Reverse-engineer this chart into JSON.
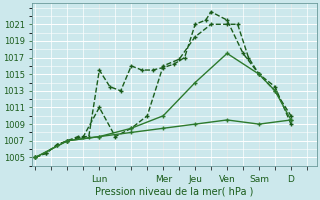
{
  "xlabel": "Pression niveau de la mer( hPa )",
  "bg_color": "#cce8ec",
  "grid_color": "#ffffff",
  "line_color_dark": "#1a5c1a",
  "line_color_light": "#2d7a2d",
  "ylim": [
    1004.0,
    1023.5
  ],
  "yticks": [
    1005,
    1007,
    1009,
    1011,
    1013,
    1015,
    1017,
    1019,
    1021
  ],
  "day_labels": [
    "Lun",
    "Mer",
    "Jeu",
    "Ven",
    "Sam",
    "D"
  ],
  "day_x": [
    2,
    4,
    5,
    6,
    7,
    8
  ],
  "xlim": [
    -0.1,
    8.8
  ],
  "series": [
    {
      "x": [
        0,
        0.33,
        0.67,
        1,
        1.33,
        1.67,
        2,
        2.33,
        2.67,
        3,
        3.33,
        3.67,
        4,
        4.33,
        4.67,
        5,
        5.33,
        5.5,
        6,
        6.5,
        7,
        7.5,
        8
      ],
      "y": [
        1005,
        1005.5,
        1006.5,
        1007,
        1007.5,
        1007.5,
        1015.5,
        1013.5,
        1013,
        1016,
        1015.5,
        1015.5,
        1015.8,
        1016.2,
        1017,
        1021,
        1021.5,
        1022.5,
        1021.5,
        1017.5,
        1015,
        1013.5,
        1009
      ],
      "color": "#1a5c1a",
      "lw": 1.0
    },
    {
      "x": [
        0,
        0.33,
        0.67,
        1,
        1.5,
        2,
        2.5,
        3,
        3.5,
        4,
        4.5,
        5,
        5.5,
        6,
        6.33,
        6.67,
        7,
        7.5,
        8
      ],
      "y": [
        1005,
        1005.5,
        1006.5,
        1007,
        1007.5,
        1011,
        1007.5,
        1008.5,
        1010,
        1016,
        1016.8,
        1019.5,
        1021,
        1021,
        1021,
        1017,
        1015,
        1013,
        1010
      ],
      "color": "#1a5c1a",
      "lw": 1.0
    },
    {
      "x": [
        0,
        1,
        2,
        3,
        4,
        5,
        6,
        7,
        7.5,
        8
      ],
      "y": [
        1005,
        1007,
        1007.5,
        1008.5,
        1010,
        1014,
        1017.5,
        1015,
        1013,
        1009.5
      ],
      "color": "#2d7a2d",
      "lw": 1.0
    },
    {
      "x": [
        0,
        1,
        2,
        3,
        4,
        5,
        6,
        7,
        8
      ],
      "y": [
        1005,
        1007,
        1007.5,
        1008,
        1008.5,
        1009,
        1009.5,
        1009,
        1009.5
      ],
      "color": "#2d7a2d",
      "lw": 1.0
    }
  ]
}
